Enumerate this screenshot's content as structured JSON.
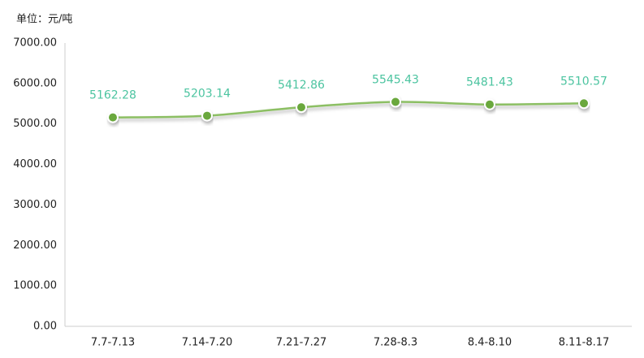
{
  "chart_data": {
    "type": "line",
    "unit_label": "单位：元/吨",
    "categories": [
      "7.7-7.13",
      "7.14-7.20",
      "7.21-7.27",
      "7.28-8.3",
      "8.4-8.10",
      "8.11-8.17"
    ],
    "values": [
      5162.28,
      5203.14,
      5412.86,
      5545.43,
      5481.43,
      5510.57
    ],
    "color": "#8cbf64",
    "marker_color": "#6aa83e",
    "label_color": "#4cc4a0",
    "ylim": [
      0,
      7000
    ],
    "yticks": [
      {
        "value": 0,
        "label": "0.00"
      },
      {
        "value": 1000,
        "label": "1000.00"
      },
      {
        "value": 2000,
        "label": "2000.00"
      },
      {
        "value": 3000,
        "label": "3000.00"
      },
      {
        "value": 4000,
        "label": "4000.00"
      },
      {
        "value": 5000,
        "label": "5000.00"
      },
      {
        "value": 6000,
        "label": "6000.00"
      },
      {
        "value": 7000,
        "label": "7000.00"
      }
    ],
    "grid": false
  }
}
